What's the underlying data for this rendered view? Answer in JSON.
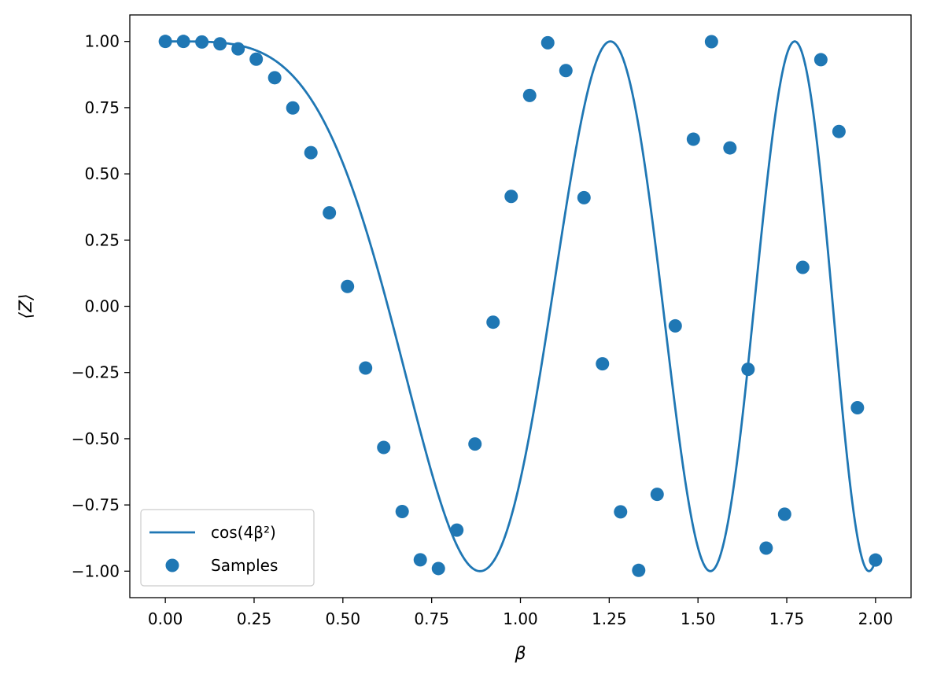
{
  "chart_data": {
    "type": "line",
    "title": "",
    "xlabel": "β",
    "ylabel": "⟨Z⟩",
    "xlim": [
      -0.1,
      2.1
    ],
    "ylim": [
      -1.1,
      1.1
    ],
    "xticks": [
      0.0,
      0.25,
      0.5,
      0.75,
      1.0,
      1.25,
      1.5,
      1.75,
      2.0
    ],
    "xtick_labels": [
      "0.00",
      "0.25",
      "0.50",
      "0.75",
      "1.00",
      "1.25",
      "1.50",
      "1.75",
      "2.00"
    ],
    "yticks": [
      1.0,
      0.75,
      0.5,
      0.25,
      0.0,
      -0.25,
      -0.5,
      -0.75,
      -1.0
    ],
    "ytick_labels": [
      "1.00",
      "0.75",
      "0.50",
      "0.25",
      "0.00",
      "−0.25",
      "−0.50",
      "−0.75",
      "−1.00"
    ],
    "grid": false,
    "legend_position": "bottom-left",
    "color": "#1f77b4",
    "series": [
      {
        "name": "cos(4β²)",
        "kind": "line",
        "function": "cos(4*x^2)",
        "x_range": [
          0,
          2
        ]
      },
      {
        "name": "Samples",
        "kind": "scatter",
        "x": [
          0.0,
          0.051,
          0.103,
          0.154,
          0.205,
          0.256,
          0.308,
          0.359,
          0.41,
          0.462,
          0.513,
          0.564,
          0.615,
          0.667,
          0.718,
          0.769,
          0.821,
          0.872,
          0.923,
          0.974,
          1.026,
          1.077,
          1.128,
          1.179,
          1.231,
          1.282,
          1.333,
          1.385,
          1.436,
          1.487,
          1.538,
          1.59,
          1.641,
          1.692,
          1.744,
          1.795,
          1.846,
          1.897,
          1.949,
          2.0
        ],
        "y": [
          1.0,
          1.0,
          0.998,
          0.991,
          0.972,
          0.933,
          0.863,
          0.749,
          0.58,
          0.353,
          0.075,
          -0.233,
          -0.533,
          -0.775,
          -0.957,
          -0.99,
          -0.845,
          -0.52,
          -0.06,
          0.415,
          0.796,
          0.995,
          0.89,
          0.41,
          -0.217,
          -0.776,
          -0.997,
          -0.71,
          -0.074,
          0.631,
          0.999,
          0.598,
          -0.238,
          -0.913,
          -0.785,
          0.147,
          0.931,
          0.66,
          -0.383,
          -0.958
        ]
      }
    ]
  }
}
